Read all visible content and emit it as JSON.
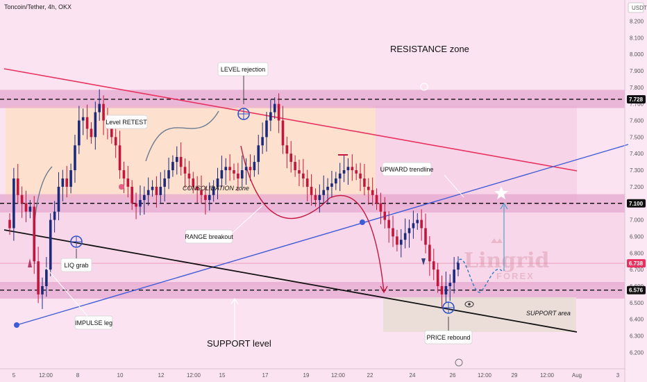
{
  "header": {
    "symbol_line": "Toncoin/Tether, 4h, OKX",
    "currency": "USDT"
  },
  "colors": {
    "background": "#fbe3f1",
    "up_candle": "#1b2a7a",
    "down_candle": "#c4163d",
    "resistance_line": "#e8315f",
    "trendline": "#3f5bd6",
    "support_line": "#111111",
    "band": "#e6a8cf",
    "consolidation_box": "#fde0c8"
  },
  "chart_data": {
    "type": "candlestick",
    "y_axis": {
      "ticks": [
        "8.200",
        "8.100",
        "8.000",
        "7.900",
        "7.800",
        "7.700",
        "7.600",
        "7.500",
        "7.400",
        "7.300",
        "7.200",
        "7.100",
        "7.000",
        "6.900",
        "6.800",
        "6.700",
        "6.600",
        "6.500",
        "6.400",
        "6.300",
        "6.200"
      ],
      "ylim": [
        6.12,
        8.34
      ]
    },
    "x_axis": {
      "ticks": [
        "5",
        "12:00",
        "8",
        "10",
        "12",
        "12:00",
        "15",
        "17",
        "19",
        "12:00",
        "22",
        "24",
        "26",
        "12:00",
        "29",
        "12:00",
        "Aug",
        "3"
      ]
    },
    "price_labels": [
      {
        "label": "7.728",
        "value": 7.728,
        "style": "dark"
      },
      {
        "label": "7.100",
        "value": 7.1,
        "style": "dark"
      },
      {
        "label": "6.738",
        "value": 6.738,
        "style": "red"
      },
      {
        "label": "6.576",
        "value": 6.576,
        "style": "dark"
      }
    ],
    "close": [
      6.95,
      7.25,
      7.15,
      7.1,
      7.05,
      7.08,
      6.75,
      6.55,
      6.6,
      6.7,
      7.0,
      7.05,
      7.2,
      7.25,
      7.2,
      7.3,
      7.45,
      7.6,
      7.62,
      7.55,
      7.5,
      7.65,
      7.7,
      7.6,
      7.55,
      7.5,
      7.45,
      7.3,
      7.25,
      7.2,
      7.1,
      7.08,
      7.12,
      7.15,
      7.18,
      7.2,
      7.15,
      7.2,
      7.25,
      7.3,
      7.35,
      7.38,
      7.32,
      7.28,
      7.25,
      7.2,
      7.18,
      7.15,
      7.12,
      7.15,
      7.2,
      7.25,
      7.3,
      7.32,
      7.3,
      7.28,
      7.25,
      7.3,
      7.32,
      7.3,
      7.35,
      7.45,
      7.5,
      7.6,
      7.65,
      7.7,
      7.6,
      7.45,
      7.4,
      7.35,
      7.3,
      7.28,
      7.25,
      7.2,
      7.15,
      7.12,
      7.15,
      7.18,
      7.2,
      7.22,
      7.25,
      7.28,
      7.3,
      7.32,
      7.3,
      7.28,
      7.25,
      7.2,
      7.18,
      7.15,
      7.1,
      7.05,
      7.0,
      6.95,
      6.9,
      6.85,
      6.88,
      6.92,
      6.95,
      6.98,
      7.0,
      6.95,
      6.85,
      6.75,
      6.7,
      6.6,
      6.55,
      6.6,
      6.62,
      6.7,
      6.74
    ],
    "levels": [
      {
        "name": "resistance-band",
        "low": 7.7,
        "high": 7.76
      },
      {
        "name": "mid-band",
        "low": 7.07,
        "high": 7.13
      },
      {
        "name": "support-band",
        "low": 6.55,
        "high": 6.6
      }
    ],
    "annotations": [
      "RESISTANCE zone",
      "LEVEL rejection",
      "Level RETEST",
      "CONSOLIDATION zone",
      "UPWARD trendline",
      "RANGE breakout",
      "LIQ grab",
      "IMPULSE leg",
      "SUPPORT level",
      "SUPPORT area",
      "PRICE rebound"
    ]
  },
  "watermark": {
    "brand": "Lingrid",
    "sub": "FOREX"
  }
}
